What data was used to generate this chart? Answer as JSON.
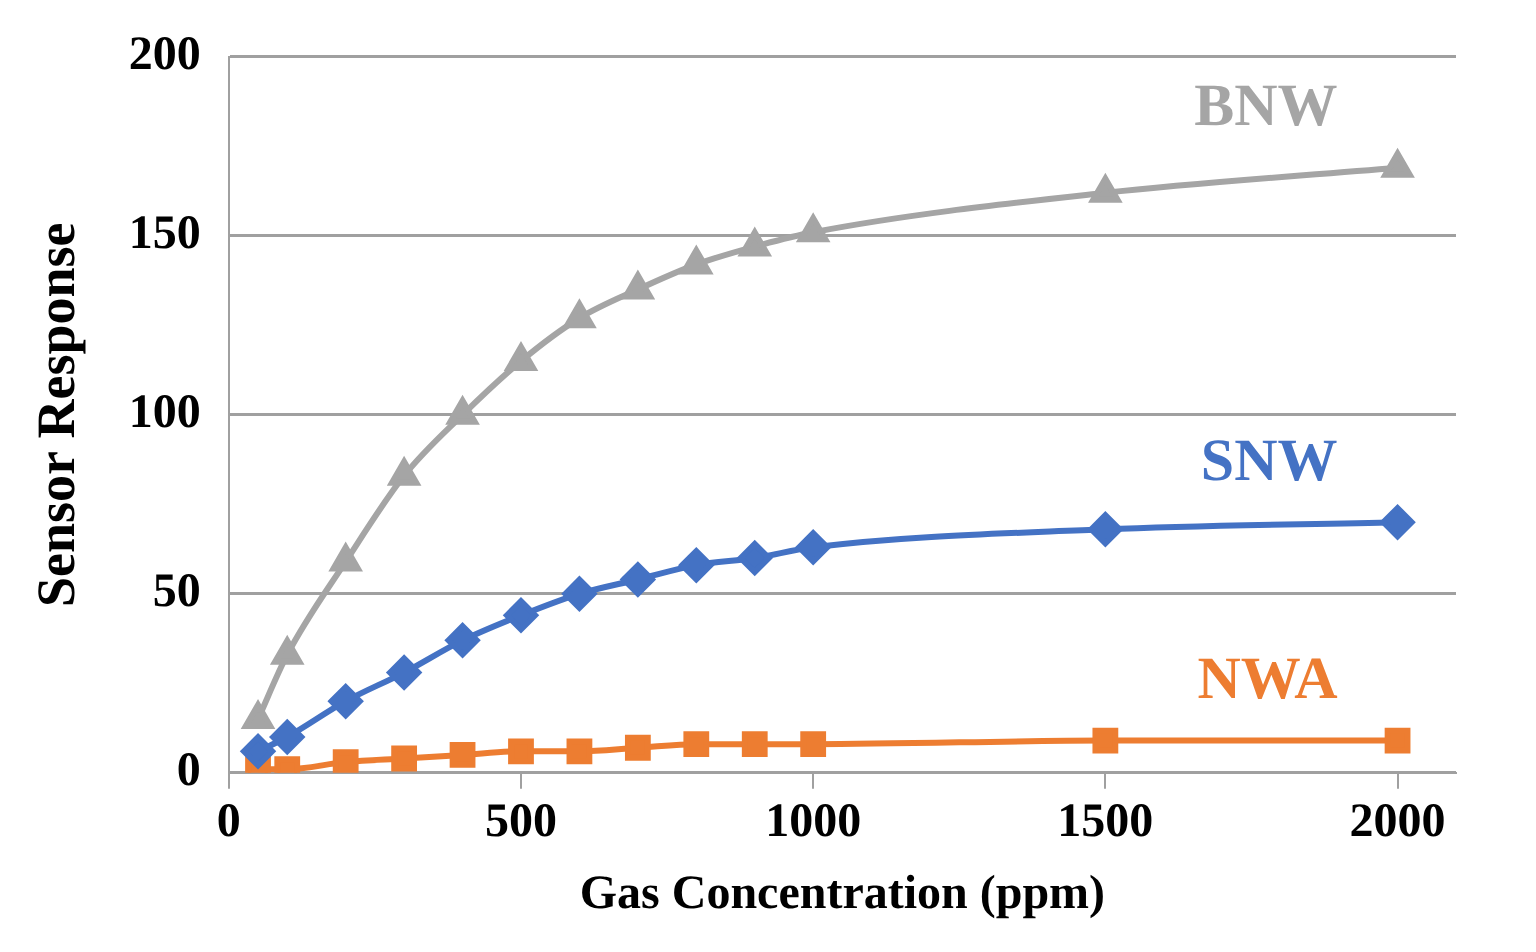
{
  "chart_data": {
    "type": "line",
    "xlabel": "Gas Concentration (ppm)",
    "ylabel": "Sensor Response",
    "x": [
      50,
      100,
      200,
      300,
      400,
      500,
      600,
      700,
      800,
      900,
      1000,
      1500,
      2000
    ],
    "series": [
      {
        "name": "BNW",
        "color": "#a5a5a5",
        "marker": "triangle",
        "values": [
          15,
          33,
          59,
          83,
          100,
          115,
          127,
          135,
          142,
          147,
          151,
          162,
          169
        ]
      },
      {
        "name": "SNW",
        "color": "#4472c4",
        "marker": "diamond",
        "values": [
          6,
          10,
          20,
          28,
          37,
          44,
          50,
          54,
          58,
          60,
          63,
          68,
          70
        ]
      },
      {
        "name": "NWA",
        "color": "#ed7d31",
        "marker": "square",
        "values": [
          1,
          1,
          3,
          4,
          5,
          6,
          6,
          7,
          8,
          8,
          8,
          9,
          9
        ]
      }
    ],
    "xlim": [
      0,
      2100
    ],
    "xticks": [
      0,
      500,
      1000,
      1500,
      2000
    ],
    "ylim": [
      0,
      200
    ],
    "yticks": [
      0,
      50,
      100,
      150,
      200
    ],
    "grid": "y",
    "legend": false
  }
}
